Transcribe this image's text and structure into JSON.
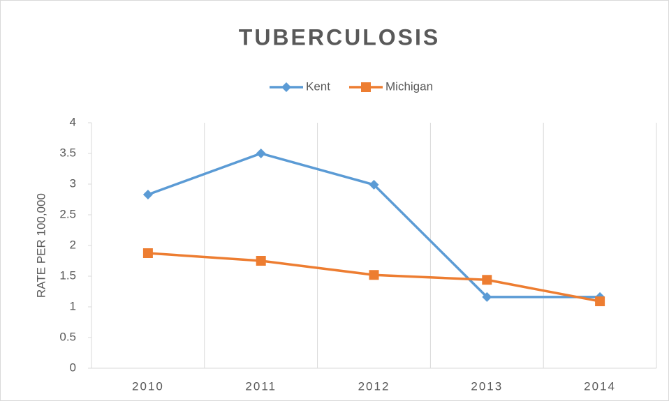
{
  "chart_data": {
    "type": "line",
    "title": "TUBERCULOSIS",
    "y_label": "RATE PER 100,000",
    "categories": [
      "2010",
      "2011",
      "2012",
      "2013",
      "2014"
    ],
    "series": [
      {
        "name": "Kent",
        "color": "#5b9bd5",
        "marker": "diamond",
        "values": [
          2.83,
          3.5,
          2.99,
          1.16,
          1.16
        ]
      },
      {
        "name": "Michigan",
        "color": "#ed7d31",
        "marker": "square",
        "values": [
          1.875,
          1.75,
          1.52,
          1.44,
          1.09
        ]
      }
    ],
    "ylim": [
      0,
      4
    ],
    "yticks": [
      0,
      0.5,
      1,
      1.5,
      2,
      2.5,
      3,
      3.5,
      4
    ],
    "grid": "vertical",
    "legend": "top"
  }
}
